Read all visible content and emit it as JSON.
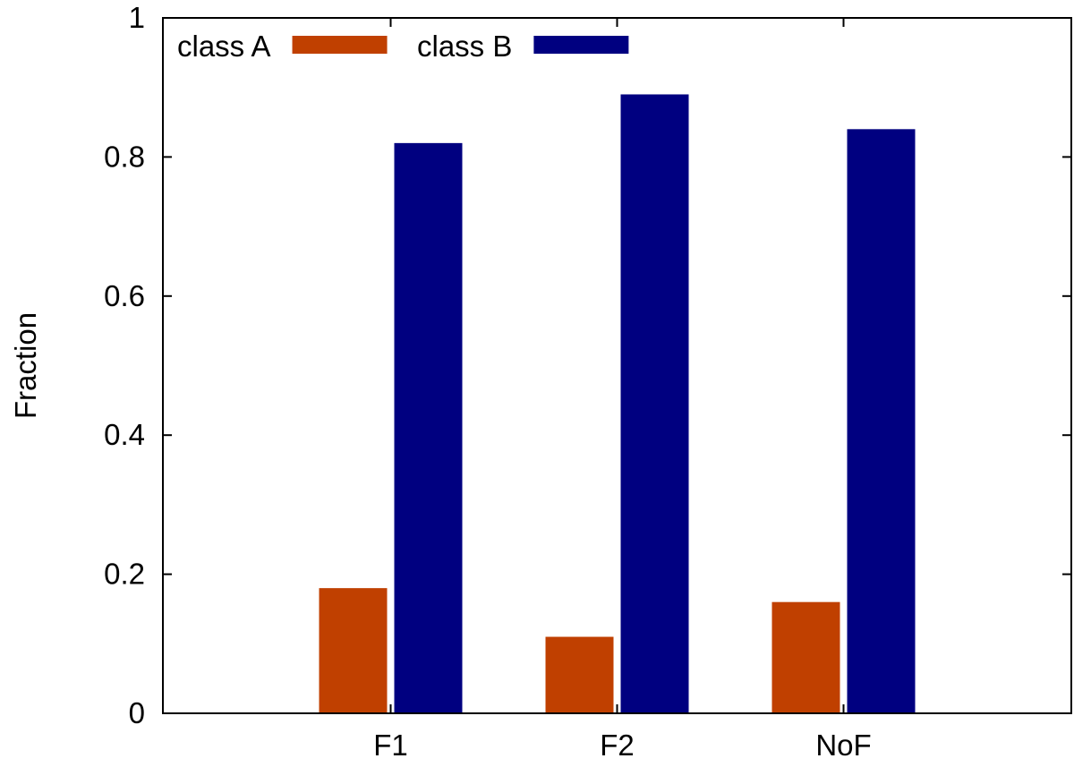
{
  "chart_data": {
    "type": "bar",
    "title": "",
    "xlabel": "",
    "ylabel": "Fraction",
    "categories": [
      "F1",
      "F2",
      "NoF"
    ],
    "series": [
      {
        "name": "class A",
        "color": "#c04000",
        "values": [
          0.18,
          0.11,
          0.16
        ]
      },
      {
        "name": "class B",
        "color": "#000080",
        "values": [
          0.82,
          0.89,
          0.84
        ]
      }
    ],
    "ylim": [
      0,
      1
    ],
    "yticks": [
      0,
      0.2,
      0.4,
      0.6,
      0.8,
      1
    ],
    "ytick_labels": [
      "0",
      "0.2",
      "0.4",
      "0.6",
      "0.8",
      "1"
    ],
    "grid": false,
    "legend_position": "top-left"
  }
}
